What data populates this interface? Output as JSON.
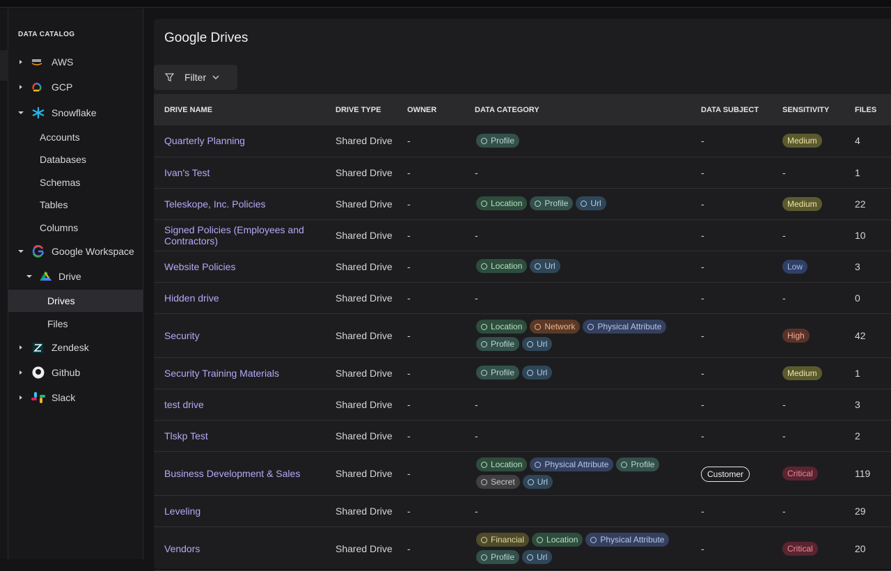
{
  "sidebar": {
    "title": "DATA CATALOG",
    "items": [
      "AWS",
      "GCP",
      "Snowflake",
      "Accounts",
      "Databases",
      "Schemas",
      "Tables",
      "Columns",
      "Google Workspace",
      "Drive",
      "Drives",
      "Files",
      "Zendesk",
      "Github",
      "Slack"
    ]
  },
  "page": {
    "title": "Google Drives",
    "filter_label": "Filter"
  },
  "table": {
    "columns": [
      "DRIVE NAME",
      "DRIVE TYPE",
      "OWNER",
      "DATA CATEGORY",
      "DATA SUBJECT",
      "SENSITIVITY",
      "FILES"
    ],
    "rows": [
      [
        "Quarterly Planning",
        "Shared Drive",
        "-",
        [
          "Profile"
        ],
        "-",
        "Medium",
        4
      ],
      [
        "Ivan's Test",
        "Shared Drive",
        "-",
        "-",
        "-",
        "-",
        1
      ],
      [
        "Teleskope, Inc. Policies",
        "Shared Drive",
        "-",
        [
          "Location",
          "Profile",
          "Url"
        ],
        "-",
        "Medium",
        22
      ],
      [
        "Signed Policies (Employees and Contractors)",
        "Shared Drive",
        "-",
        "-",
        "-",
        "-",
        10
      ],
      [
        "Website Policies",
        "Shared Drive",
        "-",
        [
          "Location",
          "Url"
        ],
        "-",
        "Low",
        3
      ],
      [
        "Hidden drive",
        "Shared Drive",
        "-",
        "-",
        "-",
        "-",
        0
      ],
      [
        "Security",
        "Shared Drive",
        "-",
        [
          "Location",
          "Network",
          "Physical Attribute",
          "Profile",
          "Url"
        ],
        "-",
        "High",
        42
      ],
      [
        "Security Training Materials",
        "Shared Drive",
        "-",
        [
          "Profile",
          "Url"
        ],
        "-",
        "Medium",
        1
      ],
      [
        "test drive",
        "Shared Drive",
        "-",
        "-",
        "-",
        "-",
        3
      ],
      [
        "Tlskp Test",
        "Shared Drive",
        "-",
        "-",
        "-",
        "-",
        2
      ],
      [
        "Business Development & Sales",
        "Shared Drive",
        "-",
        [
          "Location",
          "Physical Attribute",
          "Profile",
          "Secret",
          "Url"
        ],
        "Customer",
        "Critical",
        119
      ],
      [
        "Leveling",
        "Shared Drive",
        "-",
        "-",
        "-",
        "-",
        29
      ],
      [
        "Vendors",
        "Shared Drive",
        "-",
        [
          "Financial",
          "Location",
          "Physical Attribute",
          "Profile",
          "Url"
        ],
        "-",
        "Critical",
        20
      ]
    ]
  },
  "category_colors": {
    "Location": [
      "#2e4d3d",
      "#b5e0c5"
    ],
    "Profile": [
      "#33504a",
      "#b8d8cf"
    ],
    "Url": [
      "#2f4658",
      "#b3cfe6"
    ],
    "Network": [
      "#5a3a26",
      "#f0b48a"
    ],
    "Physical Attribute": [
      "#34405e",
      "#b8c6ec"
    ],
    "Secret": [
      "#3f3f42",
      "#c8c8c8"
    ],
    "Financial": [
      "#4e4a2a",
      "#e3d9a0"
    ]
  },
  "sensitivity_colors": {
    "Medium": [
      "#5b5a2f",
      "#ece3a6"
    ],
    "Low": [
      "#2f3f66",
      "#a9bcef"
    ],
    "High": [
      "#5a3328",
      "#efae9a"
    ],
    "Critical": [
      "#5a2430",
      "#f08a9d"
    ]
  },
  "subject_styles": {
    "Customer": "outline"
  }
}
